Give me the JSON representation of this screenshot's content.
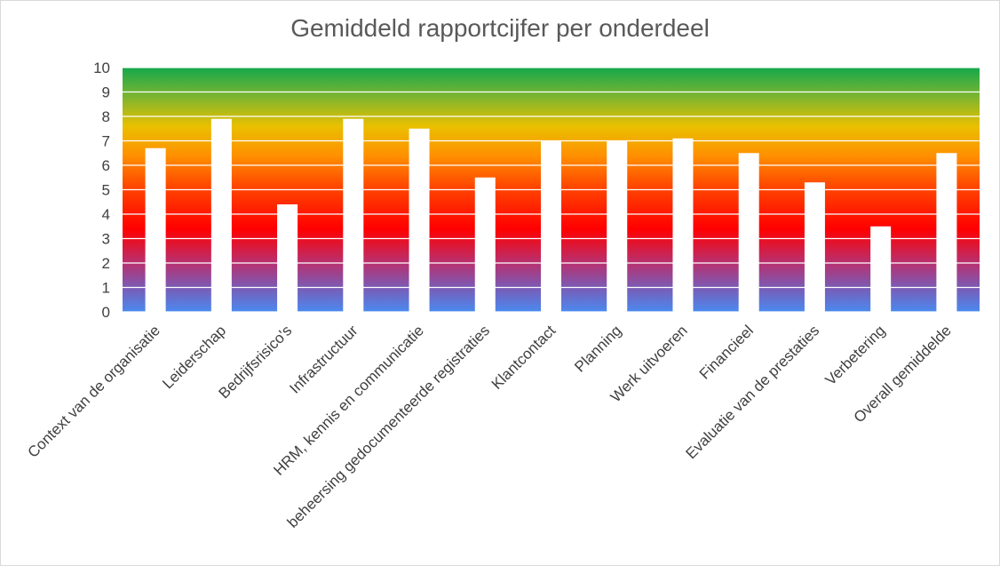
{
  "chart_data": {
    "type": "bar",
    "title": "Gemiddeld rapportcijfer per onderdeel",
    "xlabel": "",
    "ylabel": "",
    "ylim": [
      0,
      10
    ],
    "yticks": [
      0,
      1,
      2,
      3,
      4,
      5,
      6,
      7,
      8,
      9,
      10
    ],
    "grid": true,
    "legend": "none",
    "bar_color": "#ffffff",
    "background_gradient": [
      "#1aa64a",
      "#8db92e",
      "#f2c200",
      "#ff8c00",
      "#ff4500",
      "#ff0000",
      "#c0306a",
      "#7e5cb8",
      "#4a8ae8"
    ],
    "categories": [
      "Context van de organisatie",
      "Leiderschap",
      "Bedrijfsrisico's",
      "Infrastructuur",
      "HRM, kennis en communicatie",
      "beheersing gedocumenteerde registraties",
      "Klantcontact",
      "Planning",
      "Werk uitvoeren",
      "Financieel",
      "Evaluatie van de prestaties",
      "Verbetering",
      "Overall gemiddelde"
    ],
    "values": [
      6.7,
      7.9,
      4.4,
      7.9,
      7.5,
      5.5,
      7.0,
      7.0,
      7.1,
      6.5,
      5.3,
      3.5,
      6.5
    ]
  }
}
